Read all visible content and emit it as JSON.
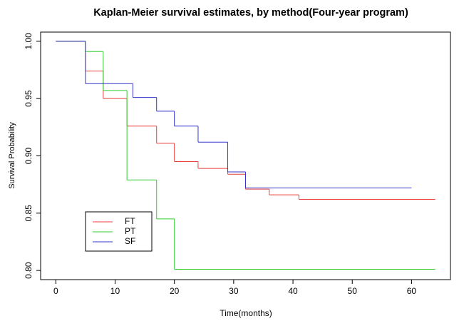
{
  "chart_data": {
    "type": "step",
    "title": "Kaplan-Meier survival estimates, by method(Four-year program)",
    "x_label": "Time(months)",
    "y_label": "Survival Probability",
    "xlim": [
      -2.56,
      66.56
    ],
    "ylim": [
      0.792,
      1.008
    ],
    "xticks": [
      0,
      10,
      20,
      30,
      40,
      50,
      60
    ],
    "yticks": [
      {
        "value": 0.8,
        "label": "0.80"
      },
      {
        "value": 0.85,
        "label": "0.85"
      },
      {
        "value": 0.9,
        "label": "0.90"
      },
      {
        "value": 0.95,
        "label": "0.95"
      },
      {
        "value": 1.0,
        "label": "1.00"
      }
    ],
    "grid": false,
    "legend": "bottom-left",
    "series": [
      {
        "name": "FT",
        "color": "#e8413f",
        "x": [
          0,
          5,
          8,
          12,
          17,
          20,
          24,
          29,
          32,
          36,
          41,
          64
        ],
        "values": [
          1.0,
          0.974,
          0.95,
          0.926,
          0.911,
          0.895,
          0.889,
          0.884,
          0.871,
          0.866,
          0.862,
          0.862
        ]
      },
      {
        "name": "PT",
        "color": "#33cc33",
        "x": [
          0,
          5,
          8,
          12,
          17,
          20,
          64
        ],
        "values": [
          1.0,
          0.991,
          0.957,
          0.879,
          0.845,
          0.801,
          0.801
        ]
      },
      {
        "name": "SF",
        "color": "#3333cc",
        "x": [
          0,
          5,
          13,
          17,
          20,
          24,
          29,
          32,
          60
        ],
        "values": [
          1.0,
          0.963,
          0.951,
          0.939,
          0.926,
          0.912,
          0.886,
          0.872,
          0.872
        ]
      }
    ]
  }
}
